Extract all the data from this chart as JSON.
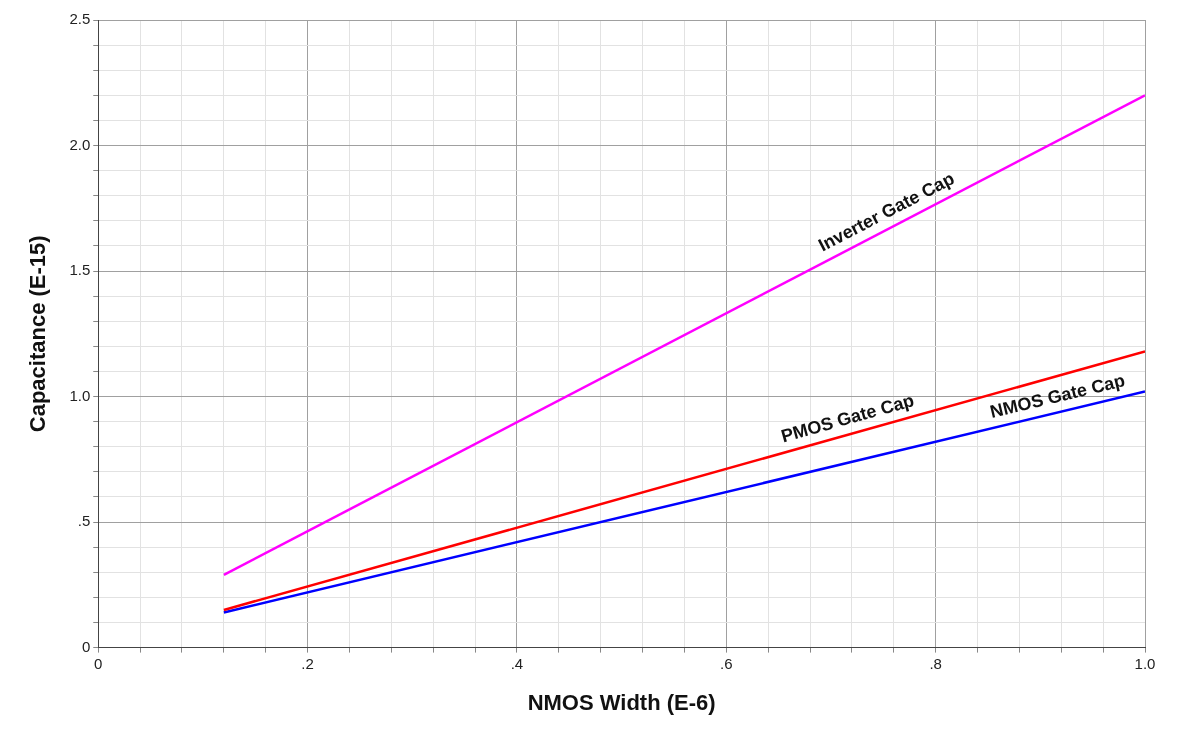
{
  "chart_data": {
    "type": "line",
    "xlabel": "NMOS Width (E-6)",
    "ylabel": "Capacitance (E-15)",
    "xlim": [
      0,
      1
    ],
    "ylim": [
      0,
      2.5
    ],
    "xticks": [
      0,
      {
        "value": 0.04,
        "label": null
      },
      {
        "value": 0.08,
        "label": null
      },
      {
        "value": 0.12,
        "label": null
      },
      {
        "value": 0.16,
        "label": null
      },
      {
        "value": 0.2,
        "label": ".2"
      },
      {
        "value": 0.24,
        "label": null
      },
      {
        "value": 0.28,
        "label": null
      },
      {
        "value": 0.32,
        "label": null
      },
      {
        "value": 0.36,
        "label": null
      },
      {
        "value": 0.4,
        "label": ".4"
      },
      {
        "value": 0.44,
        "label": null
      },
      {
        "value": 0.48,
        "label": null
      },
      {
        "value": 0.52,
        "label": null
      },
      {
        "value": 0.56,
        "label": null
      },
      {
        "value": 0.6,
        "label": ".6"
      },
      {
        "value": 0.64,
        "label": null
      },
      {
        "value": 0.68,
        "label": null
      },
      {
        "value": 0.72,
        "label": null
      },
      {
        "value": 0.76,
        "label": null
      },
      {
        "value": 0.8,
        "label": ".8"
      },
      {
        "value": 0.84,
        "label": null
      },
      {
        "value": 0.88,
        "label": null
      },
      {
        "value": 0.92,
        "label": null
      },
      {
        "value": 0.96,
        "label": null
      },
      {
        "value": 1,
        "label": "1.0"
      }
    ],
    "yticks": [
      0,
      {
        "value": 0.1,
        "label": null
      },
      {
        "value": 0.2,
        "label": null
      },
      {
        "value": 0.3,
        "label": null
      },
      {
        "value": 0.4,
        "label": null
      },
      {
        "value": 0.5,
        "label": ".5"
      },
      {
        "value": 0.6,
        "label": null
      },
      {
        "value": 0.7,
        "label": null
      },
      {
        "value": 0.8,
        "label": null
      },
      {
        "value": 0.9,
        "label": null
      },
      {
        "value": 1,
        "label": "1.0"
      },
      {
        "value": 1.1,
        "label": null
      },
      {
        "value": 1.2,
        "label": null
      },
      {
        "value": 1.3,
        "label": null
      },
      {
        "value": 1.4,
        "label": null
      },
      {
        "value": 1.5,
        "label": "1.5"
      },
      {
        "value": 1.6,
        "label": null
      },
      {
        "value": 1.7,
        "label": null
      },
      {
        "value": 1.8,
        "label": null
      },
      {
        "value": 1.9,
        "label": null
      },
      {
        "value": 2,
        "label": "2.0"
      },
      {
        "value": 2.1,
        "label": null
      },
      {
        "value": 2.2,
        "label": null
      },
      {
        "value": 2.3,
        "label": null
      },
      {
        "value": 2.4,
        "label": null
      },
      {
        "value": 2.5,
        "label": "2.5"
      }
    ],
    "grid": true,
    "legend": false,
    "marker": "none",
    "line_style": "solid",
    "x": [
      0.12,
      1
    ],
    "series": [
      {
        "name": "Inverter Gate Cap",
        "color": "#ff00ff",
        "values": [
          0.29,
          2.2
        ]
      },
      {
        "name": "PMOS Gate Cap",
        "color": "#ff0000",
        "values": [
          0.15,
          1.18
        ]
      },
      {
        "name": "NMOS Gate Cap",
        "color": "#0000ff",
        "values": [
          0.14,
          1.02
        ]
      }
    ]
  }
}
